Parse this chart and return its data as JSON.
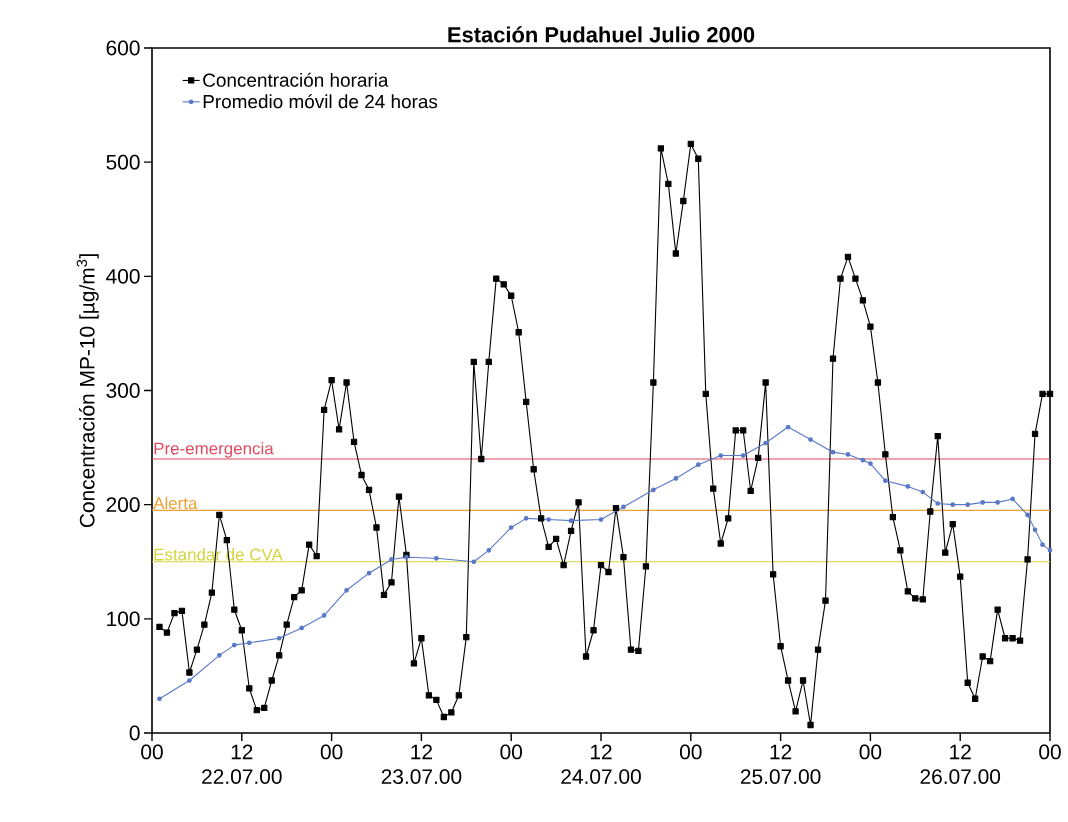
{
  "chart_data": {
    "type": "line",
    "title": "Estación Pudahuel Julio 2000",
    "ylabel": "Concentración MP-10 [µg/m$^{3}$]",
    "xlim": [
      0,
      120
    ],
    "ylim": [
      0,
      600
    ],
    "xticks": [
      {
        "value": 0,
        "label": "00"
      },
      {
        "value": 12,
        "label": "12"
      },
      {
        "value": 24,
        "label": "00"
      },
      {
        "value": 36,
        "label": "12"
      },
      {
        "value": 48,
        "label": "00"
      },
      {
        "value": 60,
        "label": "12"
      },
      {
        "value": 72,
        "label": "00"
      },
      {
        "value": 84,
        "label": "12"
      },
      {
        "value": 96,
        "label": "00"
      },
      {
        "value": 108,
        "label": "12"
      },
      {
        "value": 120,
        "label": "00"
      }
    ],
    "yticks": [
      0,
      100,
      200,
      300,
      400,
      500,
      600
    ],
    "annotations": [
      "22.07.00",
      "23.07.00",
      "24.07.00",
      "25.07.00",
      "26.07.00"
    ],
    "legend": "top left",
    "series": [
      {
        "name": "Concentración horaria",
        "color": "#000000",
        "marker": "square",
        "x": [
          1,
          2,
          3,
          4,
          5,
          6,
          7,
          8,
          9,
          10,
          11,
          12,
          13,
          14,
          15,
          16,
          17,
          18,
          19,
          20,
          21,
          22,
          23,
          24,
          25,
          26,
          27,
          28,
          29,
          30,
          31,
          32,
          33,
          34,
          35,
          36,
          37,
          38,
          39,
          40,
          41,
          42,
          43,
          44,
          45,
          46,
          47,
          48,
          49,
          50,
          51,
          52,
          53,
          54,
          55,
          56,
          57,
          58,
          59,
          60,
          61,
          62,
          63,
          64,
          65,
          66,
          67,
          68,
          69,
          70,
          71,
          72,
          73,
          74,
          75,
          76,
          77,
          78,
          79,
          80,
          81,
          82,
          83,
          84,
          85,
          86,
          87,
          88,
          89,
          90,
          91,
          92,
          93,
          94,
          95,
          96,
          97,
          98,
          99,
          100,
          101,
          102,
          103,
          104,
          105,
          106,
          107,
          108,
          109,
          110,
          111,
          112,
          113,
          114,
          115,
          116,
          117,
          118,
          119,
          120
        ],
        "values": [
          93,
          88,
          105,
          107,
          53,
          73,
          95,
          123,
          191,
          169,
          108,
          90,
          39,
          20,
          22,
          46,
          68,
          95,
          119,
          125,
          165,
          155,
          283,
          309,
          266,
          307,
          255,
          226,
          213,
          180,
          121,
          132,
          207,
          156,
          61,
          83,
          33,
          29,
          14,
          18,
          33,
          84,
          325,
          240,
          325,
          398,
          393,
          383,
          351,
          290,
          231,
          188,
          163,
          170,
          147,
          177,
          202,
          67,
          90,
          147,
          141,
          197,
          154,
          73,
          72,
          146,
          307,
          512,
          481,
          420,
          466,
          516,
          503,
          297,
          214,
          166,
          188,
          265,
          265,
          212,
          241,
          307,
          139,
          76,
          46,
          19,
          46,
          7,
          73,
          116,
          328,
          398,
          417,
          398,
          379,
          356,
          307,
          244,
          189,
          160,
          124,
          118,
          117,
          194,
          260,
          158,
          183,
          137,
          44,
          30,
          67,
          63,
          108,
          83,
          83,
          81,
          152,
          262,
          297,
          297
        ]
      },
      {
        "name": "Promedio móvil de 24 horas",
        "color": "#5a78c8",
        "marker": "circle",
        "x": [
          1,
          5,
          9,
          11,
          13,
          17,
          20,
          23,
          26,
          29,
          32,
          34,
          38,
          43,
          45,
          48,
          50,
          53,
          56,
          60,
          63,
          67,
          70,
          73,
          76,
          79,
          82,
          85,
          88,
          91,
          93,
          95,
          96,
          98,
          101,
          103,
          105,
          107,
          109,
          111,
          113,
          115,
          117,
          118,
          119,
          120
        ],
        "values": [
          30,
          46,
          68,
          77,
          79,
          83,
          92,
          103,
          125,
          140,
          152,
          154,
          153,
          150,
          160,
          180,
          188,
          187,
          186,
          187,
          198,
          213,
          223,
          235,
          243,
          243,
          254,
          268,
          257,
          246,
          244,
          239,
          236,
          221,
          216,
          211,
          201,
          200,
          200,
          202,
          202,
          205,
          191,
          178,
          165,
          160
        ]
      }
    ],
    "ref_lines": [
      {
        "axis": "y",
        "value": 240,
        "label": "Pre-emergencia",
        "color": "#e04860"
      },
      {
        "axis": "y",
        "value": 195,
        "label": "Alerta",
        "color": "#f0a030"
      },
      {
        "axis": "y",
        "value": 150,
        "label": "Estandar de CVA",
        "color": "#d4d43c"
      }
    ]
  }
}
